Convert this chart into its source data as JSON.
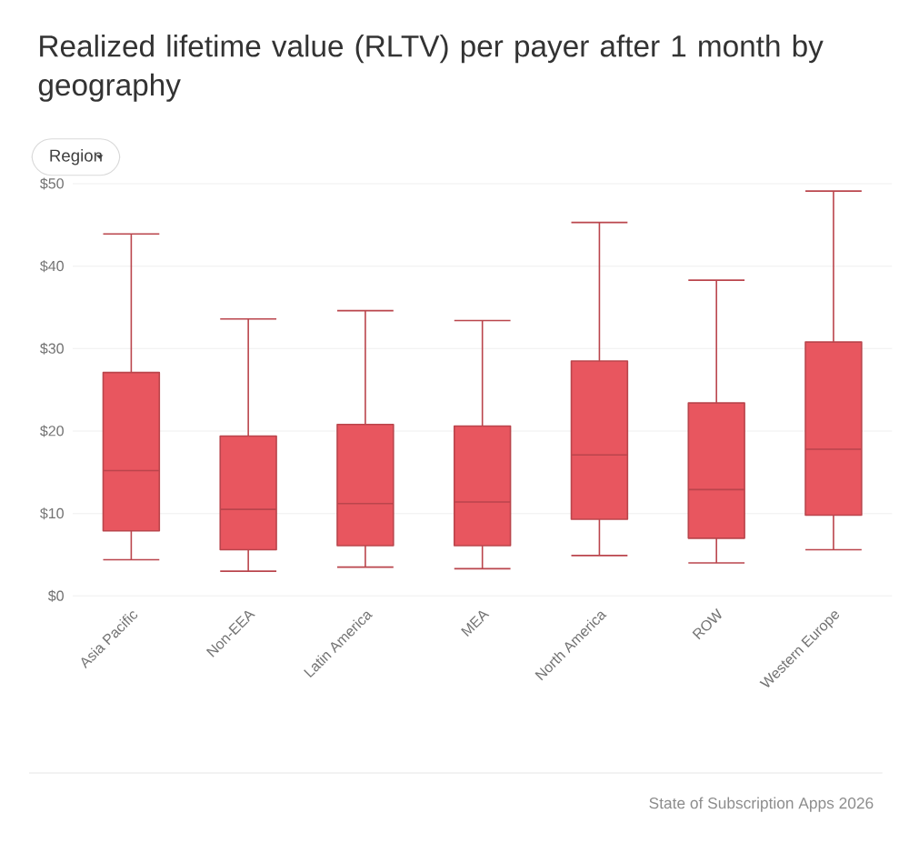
{
  "chart_data": {
    "type": "box",
    "title": "Realized lifetime value (RLTV) per payer after 1 month by geography",
    "categories": [
      "Asia Pacific",
      "Non-EEA",
      "Latin America",
      "MEA",
      "North America",
      "ROW",
      "Western Europe"
    ],
    "boxes": [
      {
        "low": 4.4,
        "q1": 7.9,
        "median": 15.2,
        "q3": 27.1,
        "high": 43.9
      },
      {
        "low": 3.0,
        "q1": 5.6,
        "median": 10.5,
        "q3": 19.4,
        "high": 33.6
      },
      {
        "low": 3.5,
        "q1": 6.1,
        "median": 11.2,
        "q3": 20.8,
        "high": 34.6
      },
      {
        "low": 3.3,
        "q1": 6.1,
        "median": 11.4,
        "q3": 20.6,
        "high": 33.4
      },
      {
        "low": 4.9,
        "q1": 9.3,
        "median": 17.1,
        "q3": 28.5,
        "high": 45.3
      },
      {
        "low": 4.0,
        "q1": 7.0,
        "median": 12.9,
        "q3": 23.4,
        "high": 38.3
      },
      {
        "low": 5.6,
        "q1": 9.8,
        "median": 17.8,
        "q3": 30.8,
        "high": 49.1
      }
    ],
    "color": "#e8565f",
    "ylim": [
      0,
      50
    ],
    "yticks": [
      {
        "value": 0,
        "label": "$0"
      },
      {
        "value": 10,
        "label": "$10"
      },
      {
        "value": 20,
        "label": "$20"
      },
      {
        "value": 30,
        "label": "$30"
      },
      {
        "value": 40,
        "label": "$40"
      },
      {
        "value": 50,
        "label": "$50"
      }
    ],
    "grid": "y",
    "annotations": [
      "Region",
      "State of Subscription Apps 2026"
    ]
  }
}
